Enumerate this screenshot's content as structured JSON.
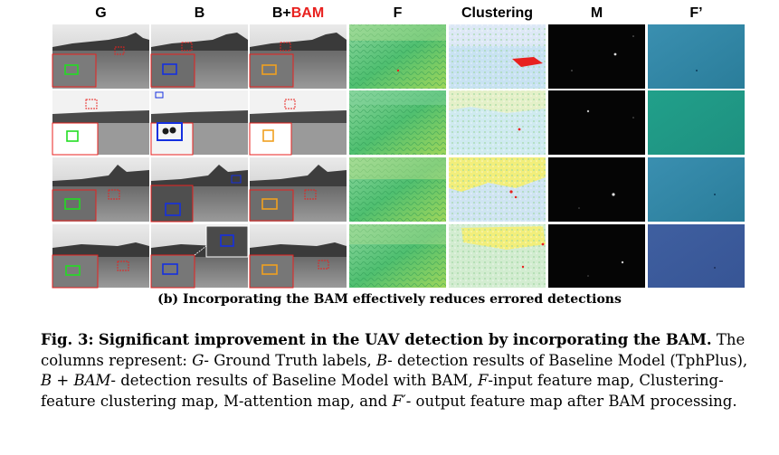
{
  "columns": {
    "g": "G",
    "b": "B",
    "bam_prefix": "B+",
    "bam_suffix": "BAM",
    "f": "F",
    "clustering": "Clustering",
    "m": "M",
    "fprime": "F’"
  },
  "subcaption": "(b) Incorporating the BAM effectively reduces errored detections",
  "caption": {
    "label": "Fig. 3:",
    "title": "Significant improvement in the UAV detection by incorporating the BAM.",
    "body_1": "The columns represent: ",
    "g_term": "G",
    "g_desc": "- Ground Truth labels, ",
    "b_term": "B",
    "b_desc": "- detection results of Baseline Model (TphPlus), ",
    "bam_term": "B + BAM",
    "bam_desc": "- detection results of Baseline Model with BAM, ",
    "f_term": "F",
    "f_desc": "-input feature map, Clustering-feature clustering map, M-attention map, and ",
    "fp_term": "F′",
    "fp_desc": "- output feature map after BAM processing."
  },
  "colors": {
    "gt_box": "#22dd22",
    "baseline_box": "#1530e0",
    "bam_box": "#f0a020",
    "error_red": "#e8211f",
    "feature_green": "#52c36e",
    "fprime_teal": "#1f8f8a",
    "cluster_yellow": "#f2ee7a",
    "cluster_blue": "#c8e2f2"
  }
}
